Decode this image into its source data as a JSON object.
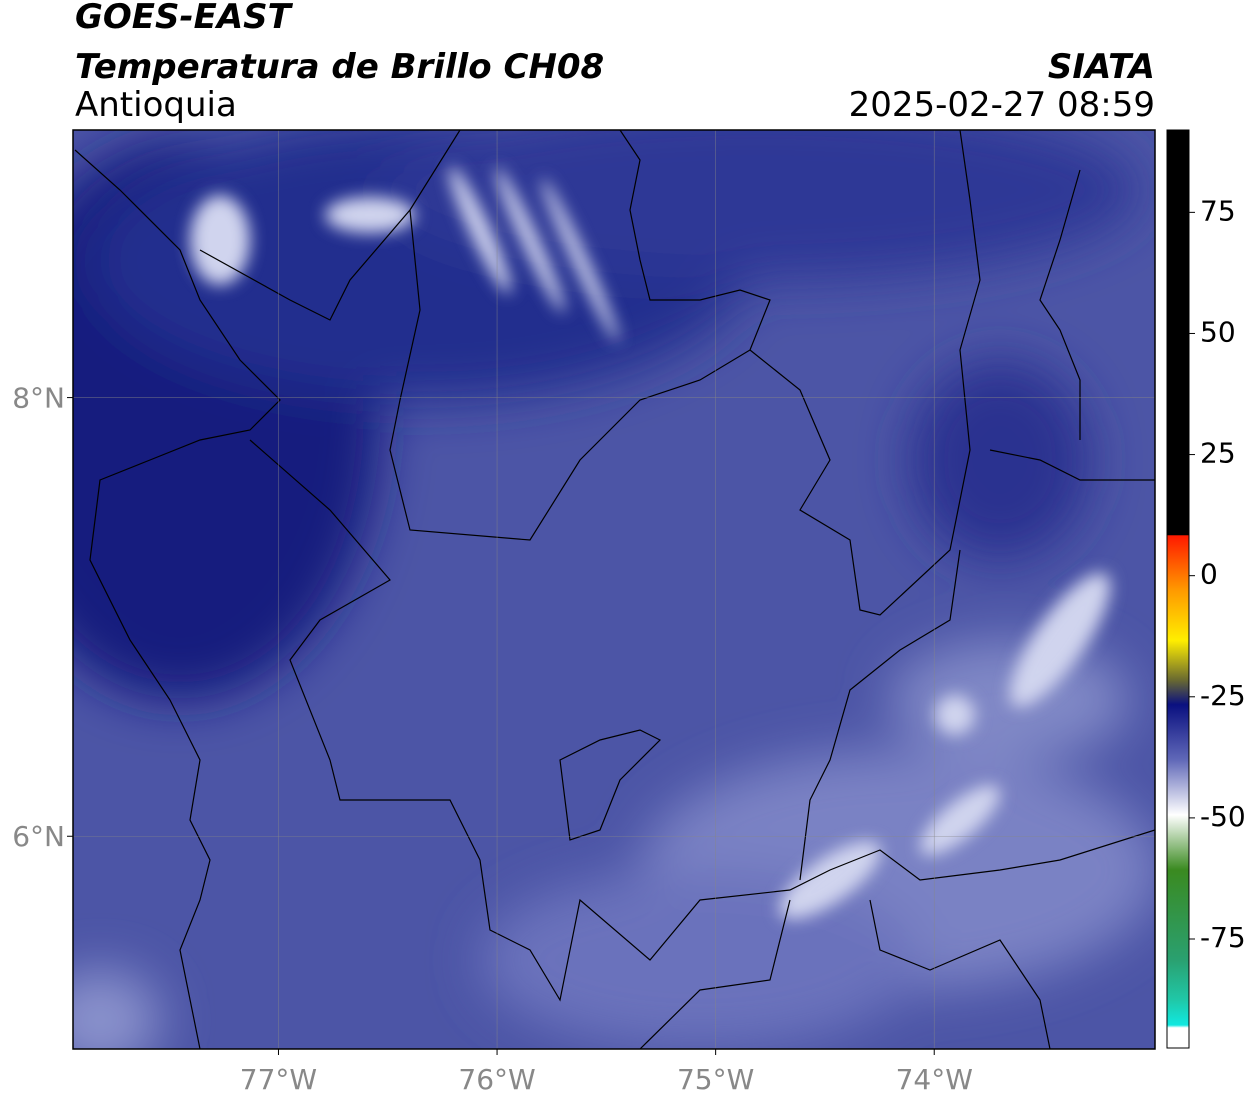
{
  "header": {
    "title": "GOES-EAST",
    "subtitle": "Temperatura de Brillo CH08",
    "region": "Antioquia",
    "source": "SIATA",
    "datetime": "2025-02-27 08:59"
  },
  "map": {
    "xlim": [
      -77.94,
      -72.99
    ],
    "ylim": [
      5.03,
      9.22
    ],
    "xticks": [
      {
        "value": -77,
        "label": "77°W"
      },
      {
        "value": -76,
        "label": "76°W"
      },
      {
        "value": -75,
        "label": "75°W"
      },
      {
        "value": -74,
        "label": "74°W"
      }
    ],
    "yticks": [
      {
        "value": 8,
        "label": "8°N"
      },
      {
        "value": 6,
        "label": "6°N"
      }
    ],
    "grid": true
  },
  "colorbar": {
    "lim": [
      -97.5,
      92
    ],
    "ticks": [
      75,
      50,
      25,
      0,
      -25,
      -50,
      -75
    ]
  }
}
